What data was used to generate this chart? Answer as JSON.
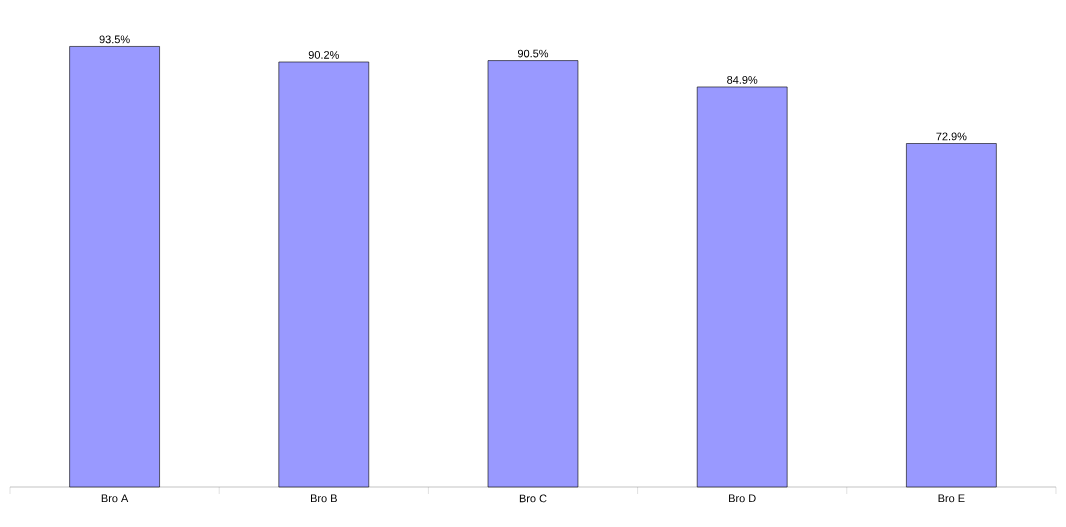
{
  "chart_data": {
    "type": "bar",
    "categories": [
      "Bro A",
      "Bro B",
      "Bro C",
      "Bro D",
      "Bro E"
    ],
    "values": [
      93.5,
      90.2,
      90.5,
      84.9,
      72.9
    ],
    "value_labels": [
      "93.5%",
      "90.2%",
      "90.5%",
      "84.9%",
      "72.9%"
    ],
    "color": "#9999ff"
  }
}
